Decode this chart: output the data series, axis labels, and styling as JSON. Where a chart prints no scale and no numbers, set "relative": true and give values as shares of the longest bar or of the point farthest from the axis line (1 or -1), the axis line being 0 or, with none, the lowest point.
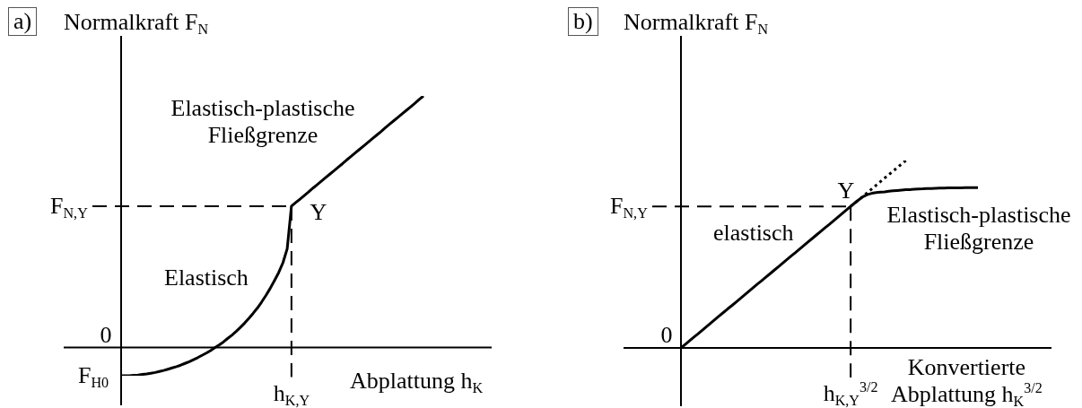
{
  "chart_data": [
    {
      "type": "line",
      "relative": true,
      "title": "a)",
      "ylabel": "Normalkraft F$_{N}$",
      "xlabel": "Abplattung h$_{K}$",
      "categories": [
        null,
        null,
        null,
        null,
        null,
        null,
        null,
        null,
        null,
        null,
        null,
        null,
        null,
        null,
        null,
        null,
        null,
        null,
        null,
        null,
        null,
        null,
        null,
        null,
        null,
        null,
        null,
        null,
        null,
        null,
        null,
        null,
        null,
        null,
        null,
        null,
        null,
        null,
        null,
        null,
        null,
        null,
        null,
        null,
        null,
        null,
        null,
        null,
        null,
        null,
        null,
        null,
        null,
        null,
        null,
        null,
        null,
        null,
        null,
        null,
        null,
        null,
        null,
        null,
        null,
        null,
        null,
        null,
        null,
        null,
        null,
        null
      ],
      "series": [
        {
          "color": "#000000",
          "values": [
            -0.112,
            -0.112,
            -0.112,
            -0.11,
            -0.109,
            -0.107,
            -0.105,
            -0.102,
            -0.099,
            -0.095,
            -0.091,
            -0.086,
            -0.081,
            -0.076,
            -0.07,
            -0.063,
            -0.056,
            -0.048,
            -0.04,
            -0.031,
            -0.022,
            -0.012,
            -0.001,
            0.01,
            0.022,
            0.036,
            0.049,
            0.064,
            0.08,
            0.097,
            0.116,
            0.136,
            0.157,
            0.181,
            0.207,
            0.235,
            0.266,
            0.298,
            0.337,
            0.393,
            0.562,
            0.576,
            0.59,
            0.604,
            0.618,
            0.633,
            0.647,
            0.661,
            0.675,
            0.689,
            0.703,
            0.717,
            0.731,
            0.746,
            0.76,
            0.774,
            0.788,
            0.802,
            0.816,
            0.83,
            0.844,
            0.858,
            0.873,
            0.887,
            0.901,
            0.915,
            0.929,
            0.943,
            0.957,
            0.971,
            0.986,
            1.0
          ]
        }
      ],
      "ref_lines": [
        {
          "axis": "y",
          "value": 0.562,
          "label": "F$_{N,Y}$",
          "line_style": "dashed"
        },
        {
          "axis": "x",
          "label": "h$_{K,Y}$",
          "line_style": "dashed"
        }
      ],
      "annotations": [
        "Elastisch-plastische\nFließgrenze",
        "Y",
        "Elastisch",
        "0",
        "F$_{H0}$"
      ]
    },
    {
      "type": "line",
      "relative": true,
      "title": "b)",
      "ylabel": "Normalkraft F$_{N}$",
      "xlabel": "Konvertierte\nAbplattung h$_{K}$$^{3/2}$",
      "categories": [
        null,
        null,
        null,
        null,
        null,
        null,
        null,
        null,
        null,
        null,
        null,
        null,
        null,
        null,
        null,
        null,
        null,
        null,
        null,
        null,
        null,
        null,
        null,
        null,
        null,
        null,
        null,
        null,
        null,
        null,
        null,
        null,
        null,
        null,
        null,
        null,
        null,
        null,
        null,
        null,
        null,
        null,
        null,
        null,
        null,
        null,
        null,
        null,
        null,
        null,
        null,
        null,
        null,
        null,
        null,
        null,
        null,
        null,
        null,
        null,
        null,
        null,
        null,
        null,
        null,
        null,
        null,
        null,
        null,
        null,
        null
      ],
      "series": [
        {
          "color": "#000000",
          "values": [
            0,
            0.019,
            0.038,
            0.057,
            0.075,
            0.094,
            0.113,
            0.132,
            0.151,
            0.17,
            0.189,
            0.208,
            0.226,
            0.245,
            0.264,
            0.283,
            0.302,
            0.321,
            0.34,
            0.358,
            0.377,
            0.396,
            0.415,
            0.434,
            0.453,
            0.472,
            0.491,
            0.509,
            0.528,
            0.547,
            0.566,
            0.585,
            0.604,
            0.623,
            0.642,
            0.66,
            0.679,
            0.698,
            0.717,
            0.736,
            0.755,
            0.774,
            0.792,
            0.808,
            0.819,
            0.825,
            0.829,
            0.831,
            0.833,
            0.836,
            0.838,
            0.84,
            0.842,
            0.844,
            0.845,
            0.847,
            0.848,
            0.849,
            0.851,
            0.851,
            0.852,
            0.853,
            0.853,
            0.854,
            0.854,
            0.854,
            0.854,
            0.855,
            0.855,
            0.855,
            0.855
          ]
        },
        {
          "color": "#000000",
          "line_style": "dotted",
          "values": [
            null,
            null,
            null,
            null,
            null,
            null,
            null,
            null,
            null,
            null,
            null,
            null,
            null,
            null,
            null,
            null,
            null,
            null,
            null,
            null,
            null,
            null,
            null,
            null,
            null,
            null,
            null,
            null,
            null,
            null,
            null,
            null,
            null,
            null,
            null,
            null,
            null,
            null,
            null,
            null,
            0.755,
            0.774,
            0.792,
            0.811,
            0.83,
            0.849,
            0.868,
            0.887,
            0.906,
            0.925,
            0.943,
            0.962,
            0.981,
            1.0,
            null,
            null,
            null,
            null,
            null,
            null,
            null,
            null,
            null,
            null,
            null,
            null,
            null,
            null,
            null,
            null,
            null
          ]
        }
      ],
      "ref_lines": [
        {
          "axis": "y",
          "value": 0.755,
          "label": "F$_{N,Y}$",
          "line_style": "dashed"
        },
        {
          "axis": "x",
          "label": "h$_{K,Y}$$^{3/2}$",
          "line_style": "dashed"
        }
      ],
      "annotations": [
        "elastisch",
        "Y",
        "Elastisch-plastische\nFließgrenze",
        "0"
      ]
    }
  ]
}
